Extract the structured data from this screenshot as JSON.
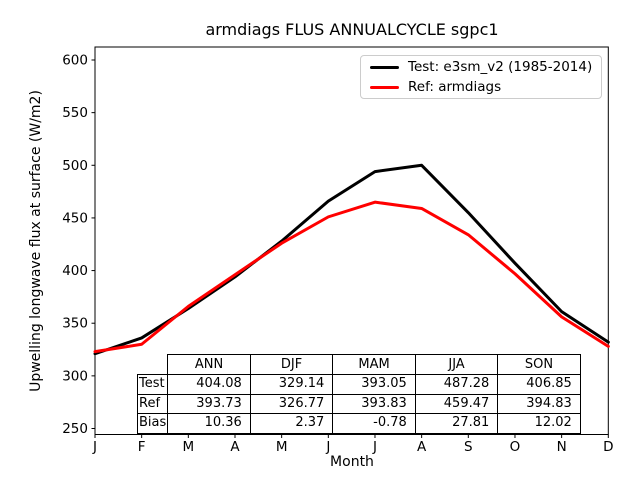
{
  "figure": {
    "title": "armdiags FLUS ANNUALCYCLE sgpc1",
    "xlabel": "Month",
    "ylabel": "Upwelling longwave flux at surface (W/m2)"
  },
  "legend": {
    "position": "upper right",
    "entries": [
      {
        "label": "Test: e3sm_v2 (1985-2014)",
        "color": "#000000"
      },
      {
        "label": "Ref: armdiags",
        "color": "#ff0000"
      }
    ]
  },
  "chart_data": {
    "type": "line",
    "title": "armdiags FLUS ANNUALCYCLE sgpc1",
    "xlabel": "Month",
    "ylabel": "Upwelling longwave flux at surface (W/m2)",
    "x_ticklabels": [
      "J",
      "F",
      "M",
      "A",
      "M",
      "J",
      "J",
      "A",
      "S",
      "O",
      "N",
      "D"
    ],
    "y_ticks": [
      250,
      300,
      350,
      400,
      450,
      500,
      550,
      600
    ],
    "ylim": [
      244,
      612
    ],
    "grid": false,
    "legend_position": "upper right",
    "series": [
      {
        "name": "Test: e3sm_v2 (1985-2014)",
        "color": "#000000",
        "values": [
          321,
          336,
          364,
          394,
          428,
          466,
          494,
          500,
          455,
          407,
          361,
          332
        ]
      },
      {
        "name": "Ref: armdiags",
        "color": "#ff0000",
        "values": [
          323,
          330,
          366,
          396,
          426,
          451,
          465,
          459,
          434,
          397,
          356,
          328
        ]
      }
    ]
  },
  "stats_table": {
    "columns": [
      "ANN",
      "DJF",
      "MAM",
      "JJA",
      "SON"
    ],
    "rows": [
      {
        "label": "Test",
        "values": [
          "404.08",
          "329.14",
          "393.05",
          "487.28",
          "406.85"
        ]
      },
      {
        "label": "Ref",
        "values": [
          "393.73",
          "326.77",
          "393.83",
          "459.47",
          "394.83"
        ]
      },
      {
        "label": "Bias",
        "values": [
          "10.36",
          "2.37",
          "-0.78",
          "27.81",
          "12.02"
        ]
      }
    ]
  }
}
